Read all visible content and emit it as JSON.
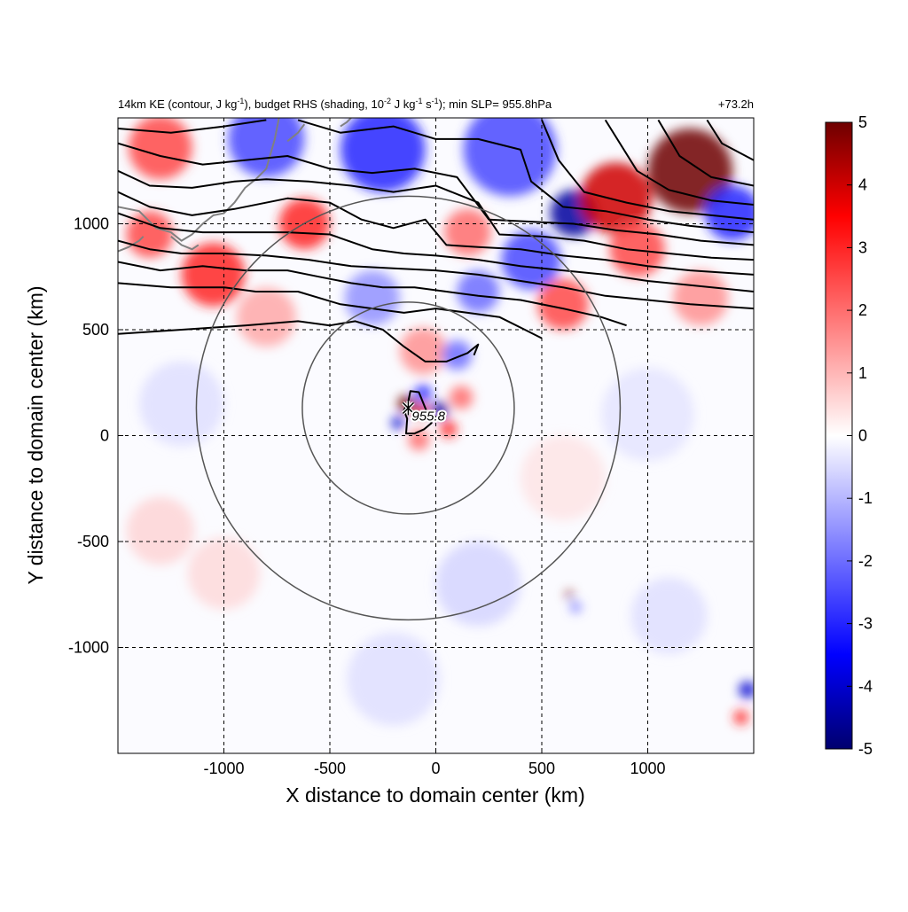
{
  "title": {
    "left": [
      {
        "t": "14km KE (contour, J kg"
      },
      {
        "t": "-1",
        "sup": true
      },
      {
        "t": "), budget RHS (shading, 10"
      },
      {
        "t": "-2",
        "sup": true
      },
      {
        "t": " J kg"
      },
      {
        "t": "-1",
        "sup": true
      },
      {
        "t": " s"
      },
      {
        "t": "-1",
        "sup": true
      },
      {
        "t": "); min SLP= 955.8hPa"
      }
    ],
    "right": "+73.2h"
  },
  "chart_data": {
    "type": "heatmap",
    "xlabel": "X distance to domain center (km)",
    "ylabel": "Y distance to domain center (km)",
    "xlim": [
      -1500,
      1500
    ],
    "ylim": [
      -1500,
      1500
    ],
    "x_ticks": [
      -1000,
      -500,
      0,
      500,
      1000
    ],
    "y_ticks": [
      -1000,
      -500,
      0,
      500,
      1000
    ],
    "grid": "dashed",
    "colorbar": {
      "min": -5,
      "max": 5,
      "ticks": [
        -5,
        -4,
        -3,
        -2,
        -1,
        0,
        1,
        2,
        3,
        4,
        5
      ],
      "colors": {
        "neg_dark": "#00006e",
        "neg": "#0000ff",
        "zero": "#ffffff",
        "pos": "#ff0000",
        "pos_dark": "#6e0000"
      }
    },
    "storm_center": {
      "x": -130,
      "y": 130,
      "min_slp_label": "955.8"
    },
    "range_rings_km": [
      500,
      1000
    ],
    "hotspots": [
      {
        "x": -140,
        "y": 150,
        "r": 40,
        "v": 5
      },
      {
        "x": -70,
        "y": 120,
        "r": 35,
        "v": 4
      },
      {
        "x": -60,
        "y": 200,
        "r": 40,
        "v": -3
      },
      {
        "x": 20,
        "y": 120,
        "r": 40,
        "v": -4.5
      },
      {
        "x": 60,
        "y": 30,
        "r": 40,
        "v": 3
      },
      {
        "x": -180,
        "y": 60,
        "r": 30,
        "v": -4
      },
      {
        "x": -80,
        "y": -20,
        "r": 50,
        "v": 2
      },
      {
        "x": 120,
        "y": 180,
        "r": 55,
        "v": 2
      },
      {
        "x": -60,
        "y": 400,
        "r": 110,
        "v": 1.5
      },
      {
        "x": 100,
        "y": 380,
        "r": 70,
        "v": -2
      },
      {
        "x": -620,
        "y": 1000,
        "r": 120,
        "v": 3
      },
      {
        "x": -1050,
        "y": 760,
        "r": 150,
        "v": 3
      },
      {
        "x": -1350,
        "y": 950,
        "r": 110,
        "v": 2.5
      },
      {
        "x": -1300,
        "y": 1360,
        "r": 150,
        "v": 2.5
      },
      {
        "x": -800,
        "y": 1400,
        "r": 180,
        "v": -2.5
      },
      {
        "x": -250,
        "y": 1350,
        "r": 200,
        "v": -3
      },
      {
        "x": 350,
        "y": 1350,
        "r": 220,
        "v": -2.5
      },
      {
        "x": 650,
        "y": 1050,
        "r": 110,
        "v": -4.5
      },
      {
        "x": 850,
        "y": 1120,
        "r": 170,
        "v": 4
      },
      {
        "x": 1200,
        "y": 1250,
        "r": 200,
        "v": 5
      },
      {
        "x": 1400,
        "y": 1050,
        "r": 130,
        "v": -3
      },
      {
        "x": 950,
        "y": 880,
        "r": 130,
        "v": 2.5
      },
      {
        "x": 450,
        "y": 830,
        "r": 140,
        "v": -2.5
      },
      {
        "x": 150,
        "y": 960,
        "r": 110,
        "v": 2
      },
      {
        "x": 600,
        "y": 620,
        "r": 120,
        "v": 2.5
      },
      {
        "x": 200,
        "y": 680,
        "r": 100,
        "v": -2
      },
      {
        "x": -300,
        "y": 650,
        "r": 130,
        "v": -1.5
      },
      {
        "x": -800,
        "y": 560,
        "r": 140,
        "v": 1.2
      },
      {
        "x": 1250,
        "y": 650,
        "r": 130,
        "v": 1.5
      },
      {
        "x": 630,
        "y": -750,
        "r": 18,
        "v": 5
      },
      {
        "x": 660,
        "y": -810,
        "r": 25,
        "v": -2
      },
      {
        "x": 1470,
        "y": -1200,
        "r": 40,
        "v": -4
      },
      {
        "x": 1440,
        "y": -1330,
        "r": 35,
        "v": 3
      },
      {
        "x": -1300,
        "y": -450,
        "r": 160,
        "v": 0.8
      },
      {
        "x": -1000,
        "y": -650,
        "r": 170,
        "v": 0.7
      },
      {
        "x": 200,
        "y": -700,
        "r": 200,
        "v": -0.8
      },
      {
        "x": 1100,
        "y": -850,
        "r": 180,
        "v": -0.6
      },
      {
        "x": -200,
        "y": -1150,
        "r": 220,
        "v": -0.6
      },
      {
        "x": 1000,
        "y": 100,
        "r": 220,
        "v": -0.5
      },
      {
        "x": -1200,
        "y": 150,
        "r": 200,
        "v": -0.6
      },
      {
        "x": 600,
        "y": -200,
        "r": 200,
        "v": 0.5
      }
    ],
    "contours": [
      [
        [
          -1500,
          480
        ],
        [
          -1200,
          500
        ],
        [
          -900,
          520
        ],
        [
          -650,
          540
        ],
        [
          -500,
          520
        ],
        [
          -380,
          540
        ],
        [
          -250,
          500
        ],
        [
          -150,
          420
        ],
        [
          -50,
          350
        ],
        [
          50,
          350
        ],
        [
          150,
          390
        ],
        [
          200,
          430
        ],
        [
          180,
          380
        ]
      ],
      [
        [
          -1500,
          720
        ],
        [
          -1250,
          700
        ],
        [
          -1000,
          700
        ],
        [
          -850,
          680
        ],
        [
          -650,
          680
        ],
        [
          -450,
          620
        ],
        [
          -300,
          600
        ],
        [
          -150,
          580
        ],
        [
          0,
          600
        ],
        [
          150,
          580
        ],
        [
          300,
          560
        ],
        [
          420,
          500
        ],
        [
          500,
          460
        ]
      ],
      [
        [
          -1500,
          820
        ],
        [
          -1300,
          780
        ],
        [
          -1100,
          800
        ],
        [
          -900,
          780
        ],
        [
          -700,
          780
        ],
        [
          -550,
          750
        ],
        [
          -400,
          720
        ],
        [
          -250,
          700
        ],
        [
          -100,
          700
        ],
        [
          50,
          680
        ],
        [
          200,
          660
        ],
        [
          400,
          640
        ],
        [
          600,
          600
        ],
        [
          780,
          560
        ],
        [
          900,
          520
        ]
      ],
      [
        [
          -1500,
          920
        ],
        [
          -1350,
          880
        ],
        [
          -1200,
          860
        ],
        [
          -1000,
          860
        ],
        [
          -800,
          850
        ],
        [
          -600,
          830
        ],
        [
          -400,
          800
        ],
        [
          -200,
          790
        ],
        [
          0,
          780
        ],
        [
          200,
          760
        ],
        [
          400,
          730
        ],
        [
          600,
          700
        ],
        [
          800,
          660
        ],
        [
          1000,
          640
        ],
        [
          1200,
          620
        ],
        [
          1500,
          600
        ]
      ],
      [
        [
          -1500,
          1050
        ],
        [
          -1300,
          980
        ],
        [
          -1100,
          960
        ],
        [
          -900,
          960
        ],
        [
          -700,
          960
        ],
        [
          -500,
          950
        ],
        [
          -300,
          880
        ],
        [
          -150,
          860
        ],
        [
          0,
          850
        ],
        [
          200,
          830
        ],
        [
          400,
          800
        ],
        [
          600,
          780
        ],
        [
          800,
          760
        ],
        [
          1000,
          730
        ],
        [
          1200,
          710
        ],
        [
          1500,
          680
        ]
      ],
      [
        [
          -1500,
          1150
        ],
        [
          -1350,
          1080
        ],
        [
          -1150,
          1040
        ],
        [
          -950,
          1070
        ],
        [
          -700,
          1120
        ],
        [
          -500,
          1100
        ],
        [
          -350,
          1020
        ],
        [
          -200,
          980
        ],
        [
          -50,
          1020
        ],
        [
          50,
          900
        ],
        [
          200,
          890
        ],
        [
          400,
          880
        ],
        [
          600,
          850
        ],
        [
          800,
          830
        ],
        [
          1000,
          800
        ],
        [
          1200,
          780
        ],
        [
          1500,
          760
        ]
      ],
      [
        [
          -1500,
          1250
        ],
        [
          -1350,
          1180
        ],
        [
          -1150,
          1170
        ],
        [
          -950,
          1200
        ],
        [
          -800,
          1210
        ],
        [
          -600,
          1200
        ],
        [
          -400,
          1180
        ],
        [
          -200,
          1150
        ],
        [
          0,
          1180
        ],
        [
          200,
          1100
        ],
        [
          300,
          950
        ],
        [
          500,
          940
        ],
        [
          700,
          920
        ],
        [
          900,
          880
        ],
        [
          1100,
          860
        ],
        [
          1300,
          840
        ],
        [
          1500,
          830
        ]
      ],
      [
        [
          -1500,
          1380
        ],
        [
          -1300,
          1320
        ],
        [
          -1100,
          1280
        ],
        [
          -900,
          1300
        ],
        [
          -700,
          1320
        ],
        [
          -500,
          1260
        ],
        [
          -300,
          1240
        ],
        [
          -100,
          1260
        ],
        [
          100,
          1220
        ],
        [
          250,
          1020
        ],
        [
          450,
          1010
        ],
        [
          650,
          1000
        ],
        [
          850,
          970
        ],
        [
          1050,
          950
        ],
        [
          1250,
          920
        ],
        [
          1500,
          900
        ]
      ],
      [
        [
          -1500,
          1450
        ],
        [
          -1250,
          1430
        ],
        [
          -1000,
          1460
        ],
        [
          -800,
          1490
        ]
      ],
      [
        [
          -650,
          1490
        ],
        [
          -450,
          1430
        ],
        [
          -200,
          1460
        ],
        [
          0,
          1400
        ],
        [
          200,
          1400
        ],
        [
          400,
          1350
        ],
        [
          450,
          1200
        ],
        [
          600,
          1080
        ],
        [
          800,
          1060
        ],
        [
          1000,
          1020
        ],
        [
          1200,
          990
        ],
        [
          1500,
          960
        ]
      ],
      [
        [
          500,
          1490
        ],
        [
          580,
          1300
        ],
        [
          700,
          1150
        ],
        [
          900,
          1100
        ],
        [
          1100,
          1060
        ],
        [
          1300,
          1040
        ],
        [
          1500,
          1020
        ]
      ],
      [
        [
          800,
          1490
        ],
        [
          950,
          1250
        ],
        [
          1100,
          1160
        ],
        [
          1300,
          1110
        ],
        [
          1500,
          1090
        ]
      ],
      [
        [
          1050,
          1490
        ],
        [
          1150,
          1320
        ],
        [
          1300,
          1220
        ],
        [
          1500,
          1180
        ]
      ],
      [
        [
          1280,
          1490
        ],
        [
          1350,
          1380
        ],
        [
          1500,
          1300
        ]
      ],
      [
        [
          -130,
          160
        ],
        [
          -120,
          210
        ],
        [
          -80,
          205
        ],
        [
          -50,
          130
        ],
        [
          -20,
          60
        ],
        [
          -55,
          30
        ],
        [
          -100,
          10
        ],
        [
          -140,
          10
        ],
        [
          -135,
          80
        ],
        [
          -150,
          120
        ],
        [
          -130,
          160
        ]
      ]
    ],
    "coastlines": [
      [
        [
          -1500,
          1080
        ],
        [
          -1400,
          1060
        ],
        [
          -1320,
          980
        ],
        [
          -1250,
          960
        ],
        [
          -1200,
          920
        ],
        [
          -1150,
          950
        ],
        [
          -1100,
          1000
        ],
        [
          -1050,
          1040
        ],
        [
          -1000,
          1050
        ],
        [
          -950,
          1100
        ],
        [
          -900,
          1170
        ],
        [
          -850,
          1210
        ],
        [
          -800,
          1260
        ],
        [
          -780,
          1330
        ],
        [
          -760,
          1400
        ],
        [
          -740,
          1500
        ]
      ],
      [
        [
          -1500,
          870
        ],
        [
          -1450,
          890
        ],
        [
          -1400,
          920
        ],
        [
          -1380,
          940
        ]
      ],
      [
        [
          -1250,
          940
        ],
        [
          -1200,
          900
        ],
        [
          -1150,
          880
        ],
        [
          -1120,
          900
        ]
      ],
      [
        [
          -700,
          1390
        ],
        [
          -650,
          1430
        ],
        [
          -620,
          1470
        ]
      ],
      [
        [
          -450,
          1460
        ],
        [
          -420,
          1480
        ],
        [
          -400,
          1500
        ]
      ]
    ]
  }
}
